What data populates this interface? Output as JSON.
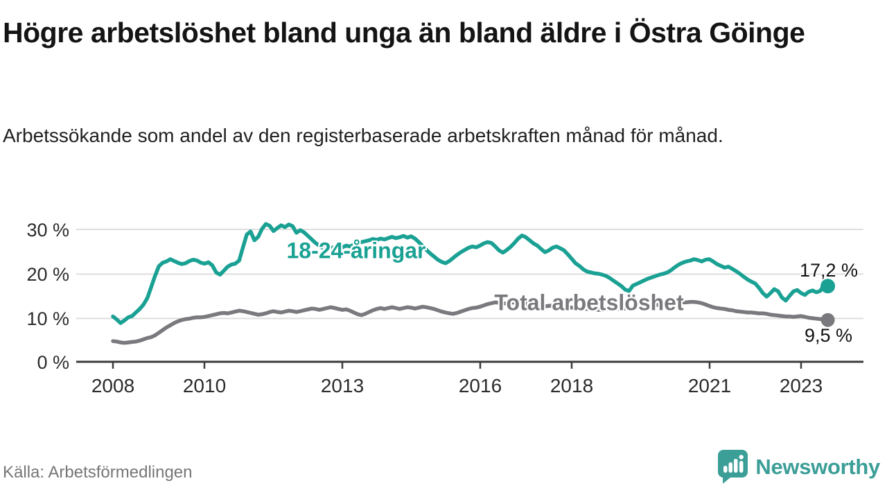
{
  "header": {
    "title": "Högre arbetslöshet bland unga än bland äldre i Östra Göinge",
    "subtitle": "Arbetssökande som andel av den registerbaserade arbetskraften månad för månad."
  },
  "chart": {
    "y_ticks": [
      "30 %",
      "20 %",
      "10 %",
      "0 %"
    ],
    "x_ticks": [
      "2008",
      "2010",
      "2013",
      "2016",
      "2018",
      "2021",
      "2023"
    ],
    "series_labels": {
      "young": "18-24-åringar",
      "total": "Total arbetslöshet"
    },
    "end_labels": {
      "young": "17,2 %",
      "total": "9,5 %"
    }
  },
  "footer": {
    "source": "Källa: Arbetsförmedlingen",
    "brand": "Newsworthy"
  },
  "colors": {
    "young": "#1AA194",
    "total": "#7A7A7E",
    "axis": "#3B3B3B",
    "grid": "#DEDEDE",
    "brand": "#3B9E97"
  },
  "chart_data": {
    "type": "line",
    "title": "Högre arbetslöshet bland unga än bland äldre i Östra Göinge",
    "subtitle": "Arbetssökande som andel av den registerbaserade arbetskraften månad för månad.",
    "source": "Källa: Arbetsförmedlingen",
    "frequency": "monthly",
    "x_start": "2008-01",
    "x_end": "2023-08",
    "ylim": [
      0,
      32
    ],
    "y_tick_values": [
      0,
      10,
      20,
      30
    ],
    "x_tick_years": [
      2008,
      2010,
      2013,
      2016,
      2018,
      2021,
      2023
    ],
    "grid": "horizontal",
    "legend_position": "inline-labels",
    "series": [
      {
        "name": "18-24-åringar",
        "color": "#1AA194",
        "last_value_label": "17,2 %",
        "values": [
          10.3,
          9.6,
          8.8,
          9.4,
          10.1,
          10.4,
          11.2,
          12.0,
          13.0,
          14.5,
          17.0,
          19.5,
          21.7,
          22.5,
          22.8,
          23.3,
          22.9,
          22.5,
          22.2,
          22.4,
          22.9,
          23.2,
          23.0,
          22.5,
          22.3,
          22.6,
          21.9,
          20.3,
          19.8,
          20.7,
          21.6,
          22.1,
          22.3,
          23.0,
          26.0,
          28.9,
          29.6,
          27.6,
          28.4,
          30.2,
          31.3,
          30.9,
          29.7,
          30.4,
          31.0,
          30.6,
          31.2,
          30.8,
          29.3,
          29.9,
          29.4,
          28.6,
          27.8,
          27.0,
          26.4,
          25.8,
          25.4,
          25.8,
          26.1,
          25.7,
          26.0,
          26.4,
          26.2,
          26.6,
          26.9,
          27.2,
          27.4,
          27.6,
          27.9,
          27.7,
          28.0,
          27.8,
          28.1,
          28.4,
          28.1,
          28.3,
          28.6,
          28.2,
          28.5,
          28.0,
          27.2,
          26.3,
          25.4,
          24.6,
          23.9,
          23.2,
          22.7,
          22.4,
          22.9,
          23.6,
          24.3,
          24.9,
          25.4,
          25.9,
          26.2,
          26.0,
          26.4,
          26.9,
          27.2,
          27.0,
          26.2,
          25.3,
          24.8,
          25.4,
          26.1,
          27.0,
          28.0,
          28.7,
          28.3,
          27.6,
          26.9,
          26.4,
          25.6,
          24.9,
          25.3,
          25.9,
          26.2,
          25.8,
          25.3,
          24.4,
          23.4,
          22.4,
          21.8,
          21.0,
          20.5,
          20.3,
          20.1,
          20.0,
          19.8,
          19.5,
          19.0,
          18.4,
          17.8,
          17.2,
          16.4,
          16.1,
          17.3,
          17.7,
          18.1,
          18.5,
          18.9,
          19.2,
          19.5,
          19.8,
          20.0,
          20.3,
          20.8,
          21.5,
          22.1,
          22.5,
          22.8,
          23.0,
          23.3,
          23.1,
          22.8,
          23.2,
          23.3,
          22.8,
          22.2,
          21.8,
          21.4,
          21.6,
          21.1,
          20.6,
          20.0,
          19.3,
          18.7,
          18.2,
          17.8,
          16.8,
          15.6,
          14.8,
          15.6,
          16.5,
          16.0,
          14.6,
          13.9,
          15.0,
          16.0,
          16.3,
          15.6,
          15.2,
          15.9,
          16.2,
          15.8,
          16.1,
          17.4,
          17.2
        ]
      },
      {
        "name": "Total arbetslöshet",
        "color": "#7A7A7E",
        "last_value_label": "9,5 %",
        "values": [
          4.7,
          4.6,
          4.4,
          4.3,
          4.4,
          4.5,
          4.6,
          4.8,
          5.1,
          5.4,
          5.6,
          6.0,
          6.6,
          7.2,
          7.8,
          8.3,
          8.8,
          9.2,
          9.5,
          9.7,
          9.8,
          10.0,
          10.1,
          10.1,
          10.2,
          10.4,
          10.6,
          10.8,
          11.0,
          11.1,
          11.0,
          11.2,
          11.4,
          11.6,
          11.5,
          11.3,
          11.1,
          10.9,
          10.7,
          10.8,
          11.0,
          11.3,
          11.5,
          11.3,
          11.2,
          11.4,
          11.6,
          11.5,
          11.3,
          11.5,
          11.7,
          11.9,
          12.1,
          12.0,
          11.8,
          12.0,
          12.2,
          12.4,
          12.2,
          12.0,
          11.8,
          11.9,
          11.6,
          11.2,
          10.8,
          10.6,
          10.9,
          11.3,
          11.7,
          12.0,
          12.2,
          12.0,
          12.2,
          12.4,
          12.2,
          12.0,
          12.2,
          12.4,
          12.3,
          12.1,
          12.3,
          12.5,
          12.4,
          12.2,
          12.0,
          11.7,
          11.4,
          11.2,
          11.0,
          10.9,
          11.1,
          11.4,
          11.7,
          12.0,
          12.2,
          12.3,
          12.5,
          12.8,
          13.1,
          13.3,
          13.5,
          13.4,
          13.3,
          13.2,
          13.4,
          13.5,
          13.4,
          13.3,
          13.2,
          13.0,
          12.9,
          12.8,
          12.7,
          12.6,
          12.7,
          12.8,
          12.7,
          12.6,
          12.5,
          12.4,
          12.3,
          12.2,
          12.1,
          12.0,
          12.0,
          11.9,
          11.9,
          11.8,
          11.8,
          11.9,
          11.9,
          12.0,
          12.0,
          12.1,
          12.1,
          12.2,
          12.2,
          12.3,
          12.4,
          12.5,
          12.7,
          12.8,
          12.9,
          13.0,
          13.1,
          13.2,
          13.3,
          13.4,
          13.5,
          13.5,
          13.5,
          13.6,
          13.6,
          13.5,
          13.3,
          13.0,
          12.7,
          12.4,
          12.2,
          12.1,
          12.0,
          11.8,
          11.7,
          11.5,
          11.4,
          11.3,
          11.2,
          11.2,
          11.1,
          11.0,
          11.0,
          10.9,
          10.7,
          10.6,
          10.5,
          10.4,
          10.3,
          10.3,
          10.2,
          10.3,
          10.4,
          10.2,
          10.0,
          9.9,
          9.8,
          9.7,
          9.6,
          9.5
        ]
      }
    ]
  }
}
